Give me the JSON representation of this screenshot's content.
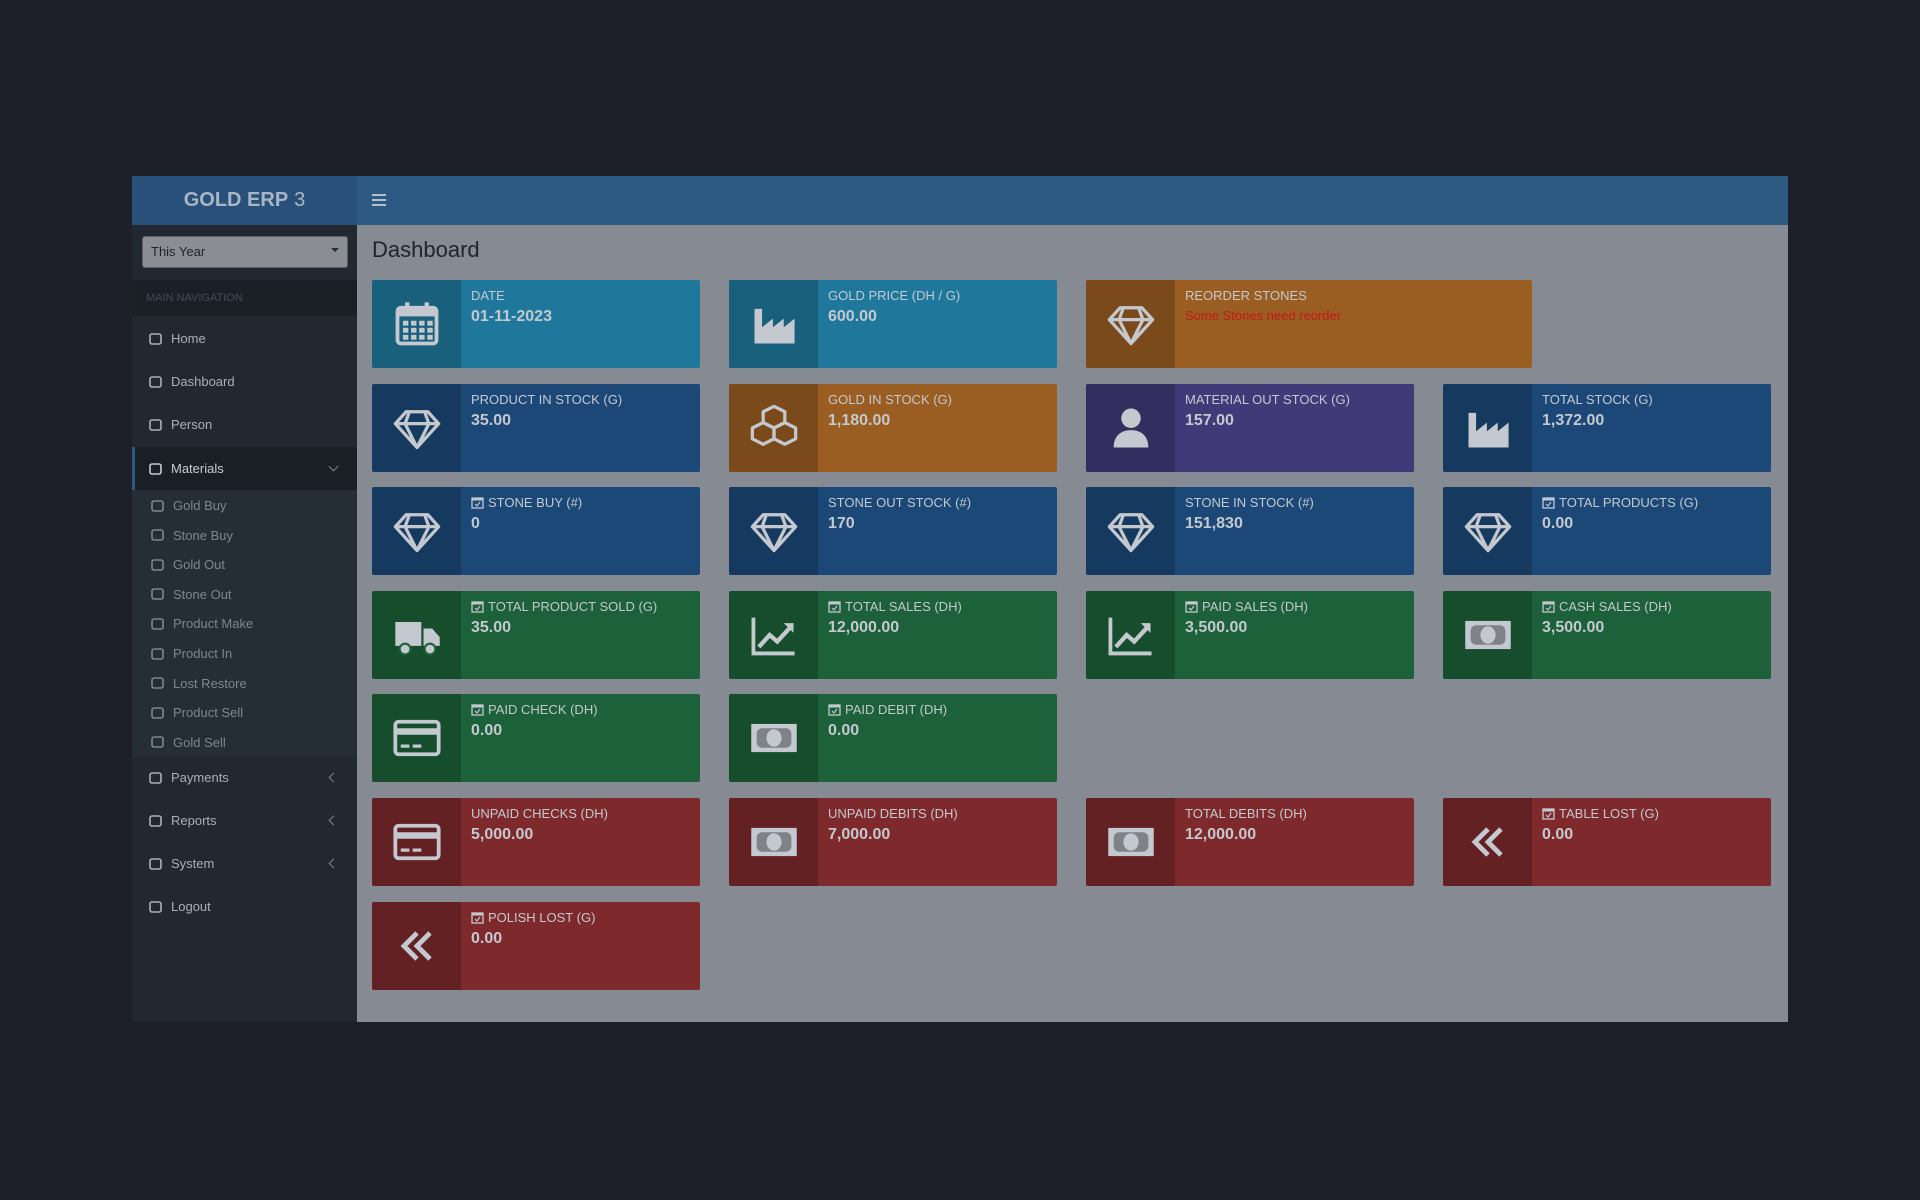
{
  "header": {
    "brand_bold": "GOLD ERP",
    "brand_light": "3"
  },
  "sidebar": {
    "period": "This Year",
    "nav_header": "MAIN NAVIGATION",
    "items": [
      {
        "label": "Home",
        "icon": "home"
      },
      {
        "label": "Dashboard",
        "icon": "gauge"
      },
      {
        "label": "Person",
        "icon": "at"
      },
      {
        "label": "Materials",
        "icon": "cubes",
        "submenu": true,
        "open": true,
        "children": [
          {
            "label": "Gold Buy",
            "icon": "industry"
          },
          {
            "label": "Stone Buy",
            "icon": "diamond"
          },
          {
            "label": "Gold Out",
            "icon": "exchange"
          },
          {
            "label": "Stone Out",
            "icon": "diamond"
          },
          {
            "label": "Product Make",
            "icon": "diamond"
          },
          {
            "label": "Product In",
            "icon": "diamond"
          },
          {
            "label": "Lost Restore",
            "icon": "undo"
          },
          {
            "label": "Product Sell",
            "icon": "diamond"
          },
          {
            "label": "Gold Sell",
            "icon": "industry"
          }
        ]
      },
      {
        "label": "Payments",
        "icon": "money",
        "submenu": true
      },
      {
        "label": "Reports",
        "icon": "bookmark",
        "submenu": true
      },
      {
        "label": "System",
        "icon": "gear",
        "submenu": true
      },
      {
        "label": "Logout",
        "icon": "signout"
      }
    ]
  },
  "main": {
    "title": "Dashboard",
    "rows": [
      [
        {
          "label": "DATE",
          "value": "01-11-2023",
          "color": "#1f789c",
          "icon": "calendar"
        },
        {
          "label": "GOLD PRICE (DH / G)",
          "value": "600.00",
          "color": "#1f789c",
          "icon": "industry"
        },
        {
          "label": "REORDER STONES",
          "message": "Some Stones need reorder",
          "color": "#9a5d22",
          "icon": "diamond"
        }
      ],
      [
        {
          "label": "PRODUCT IN STOCK (G)",
          "value": "35.00",
          "color": "#1b4877",
          "icon": "diamond"
        },
        {
          "label": "GOLD IN STOCK (G)",
          "value": "1,180.00",
          "color": "#9a5d22",
          "icon": "cubes"
        },
        {
          "label": "MATERIAL OUT STOCK (G)",
          "value": "157.00",
          "color": "#413a78",
          "icon": "user"
        },
        {
          "label": "TOTAL STOCK (G)",
          "value": "1,372.00",
          "color": "#1b4877",
          "icon": "industry"
        }
      ],
      [
        {
          "label": "STONE BUY (#)",
          "value": "0",
          "color": "#1b4877",
          "icon": "diamond",
          "dated": true
        },
        {
          "label": "STONE OUT STOCK (#)",
          "value": "170",
          "color": "#1b4877",
          "icon": "diamond"
        },
        {
          "label": "STONE IN STOCK (#)",
          "value": "151,830",
          "color": "#1b4877",
          "icon": "diamond"
        },
        {
          "label": "TOTAL PRODUCTS (G)",
          "value": "0.00",
          "color": "#1b4877",
          "icon": "diamond",
          "dated": true
        }
      ],
      [
        {
          "label": "TOTAL PRODUCT SOLD (G)",
          "value": "35.00",
          "color": "#1c6139",
          "icon": "truck",
          "dated": true
        },
        {
          "label": "TOTAL SALES (DH)",
          "value": "12,000.00",
          "color": "#1c6139",
          "icon": "chart",
          "dated": true
        },
        {
          "label": "PAID SALES (DH)",
          "value": "3,500.00",
          "color": "#1c6139",
          "icon": "chart",
          "dated": true
        },
        {
          "label": "CASH SALES (DH)",
          "value": "3,500.00",
          "color": "#1c6139",
          "icon": "money",
          "dated": true
        }
      ],
      [
        {
          "label": "PAID CHECK (DH)",
          "value": "0.00",
          "color": "#1c6139",
          "icon": "card",
          "dated": true
        },
        {
          "label": "PAID DEBIT (DH)",
          "value": "0.00",
          "color": "#1c6139",
          "icon": "money",
          "dated": true
        }
      ],
      [
        {
          "label": "UNPAID CHECKS (DH)",
          "value": "5,000.00",
          "color": "#7e2a2c",
          "icon": "card"
        },
        {
          "label": "UNPAID DEBITS (DH)",
          "value": "7,000.00",
          "color": "#7e2a2c",
          "icon": "money"
        },
        {
          "label": "TOTAL DEBITS (DH)",
          "value": "12,000.00",
          "color": "#7e2a2c",
          "icon": "money"
        },
        {
          "label": "TABLE LOST (G)",
          "value": "0.00",
          "color": "#7e2a2c",
          "icon": "angles",
          "dated": true
        }
      ],
      [
        {
          "label": "POLISH LOST (G)",
          "value": "0.00",
          "color": "#7e2a2c",
          "icon": "angles",
          "dated": true
        }
      ]
    ]
  }
}
